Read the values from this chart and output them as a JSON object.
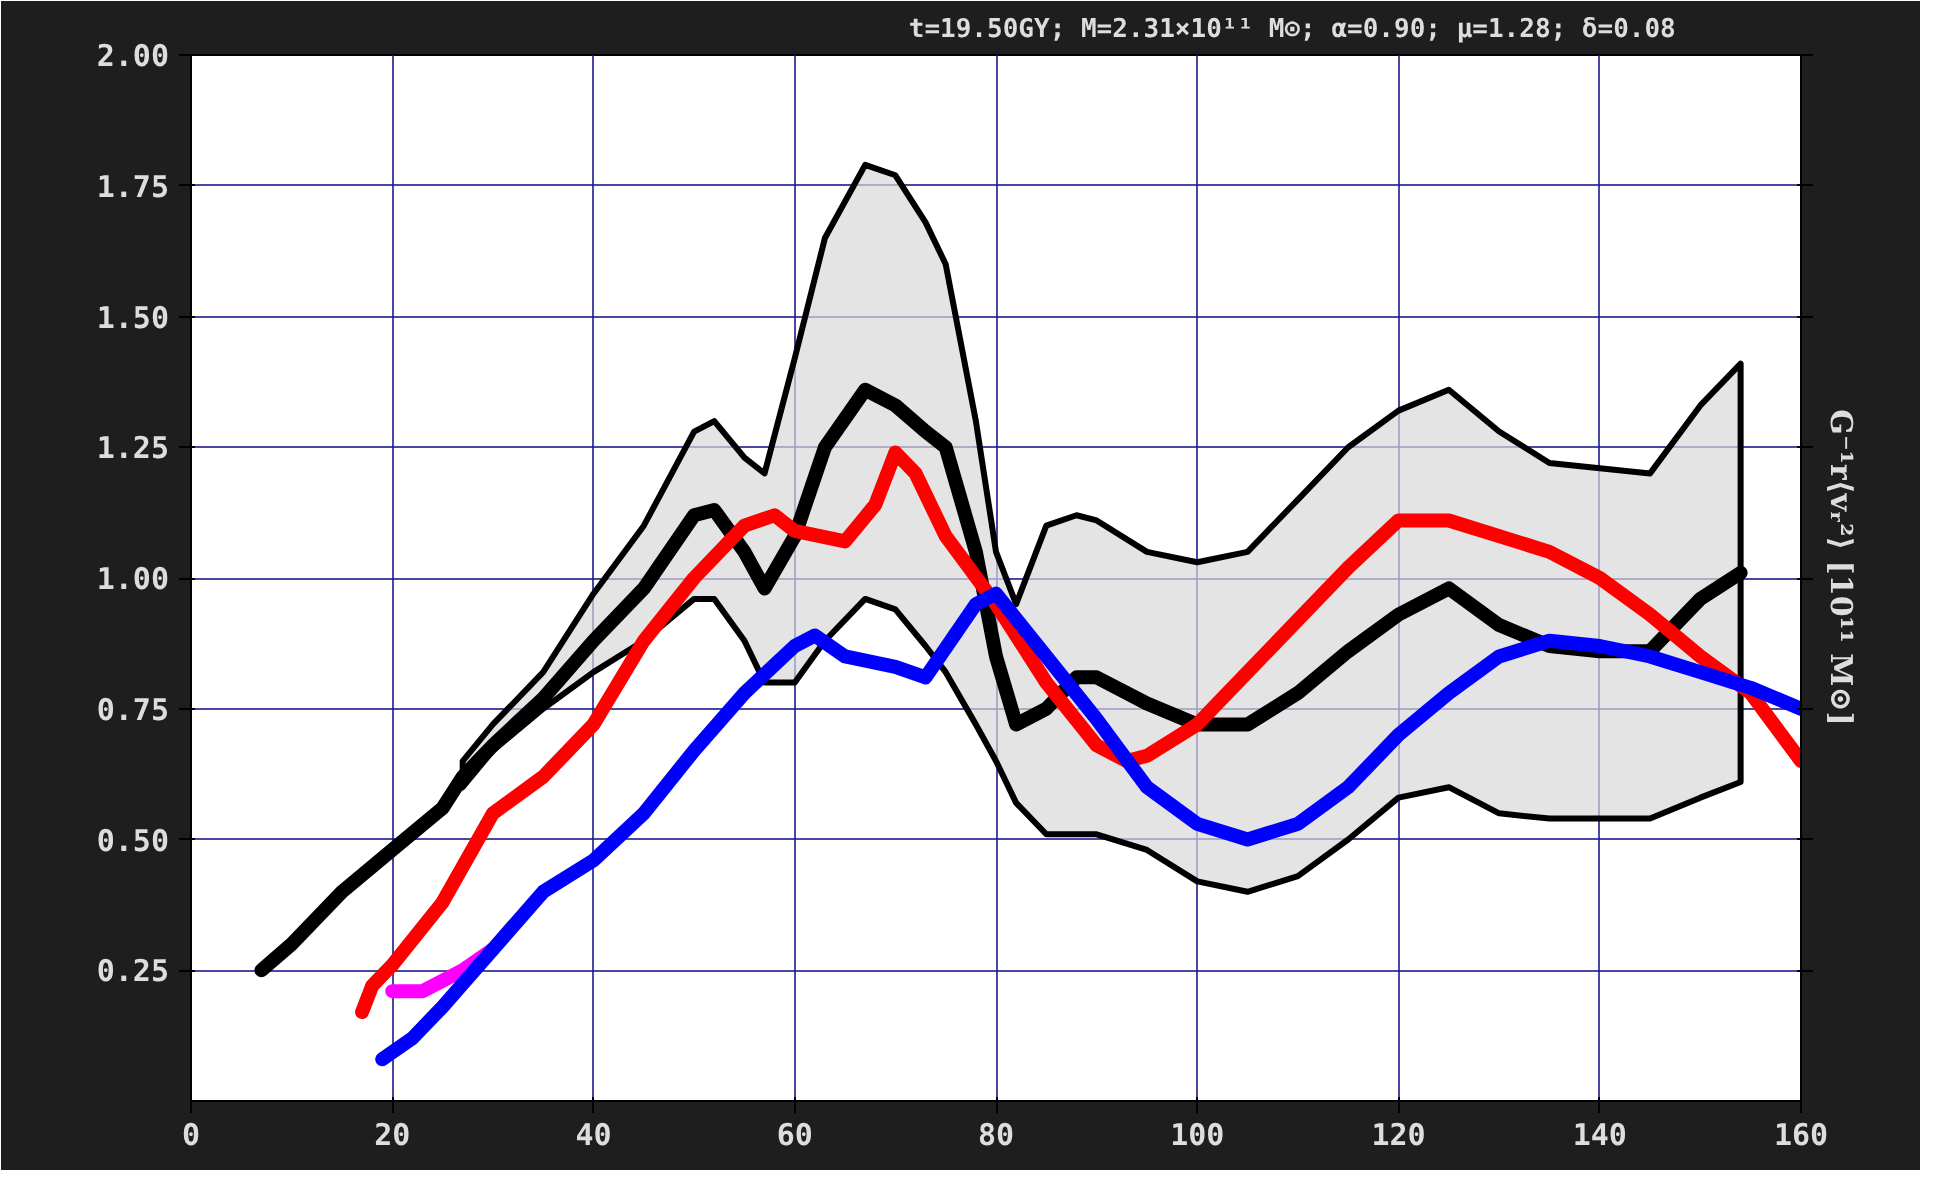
{
  "chart_data": {
    "type": "line",
    "title": "t=19.50GY;   M=2.31×10¹¹ M⊙;   α=0.90;   μ=1.28;   δ=0.08",
    "ylabel": "G⁻¹r⟨vᵣ²⟩   [10¹¹ M⊙]",
    "xlim": [
      0,
      160
    ],
    "xticks": [
      0,
      20,
      40,
      60,
      80,
      100,
      120,
      140,
      160
    ],
    "ylim": [
      0,
      2
    ],
    "yticks": [
      {
        "value": 0.25,
        "label": "0.25"
      },
      {
        "value": 0.5,
        "label": "0.50"
      },
      {
        "value": 0.75,
        "label": "0.75"
      },
      {
        "value": 1,
        "label": "1.00"
      },
      {
        "value": 1.25,
        "label": "1.25"
      },
      {
        "value": 1.5,
        "label": "1.50"
      },
      {
        "value": 1.75,
        "label": "1.75"
      },
      {
        "value": 2,
        "label": "2.00"
      }
    ],
    "grid": true,
    "marker": "none",
    "line_style": "solid",
    "series": [
      {
        "color": "#000000",
        "x": [
          7,
          10,
          15,
          20,
          25,
          27,
          30,
          35,
          40,
          45,
          50,
          52,
          55,
          57,
          60,
          63,
          67,
          70,
          73,
          75,
          78,
          80,
          82,
          85,
          88,
          90,
          95,
          100,
          105,
          110,
          115,
          120,
          125,
          130,
          135,
          140,
          145,
          150,
          154
        ],
        "values": [
          0.25,
          0.3,
          0.4,
          0.48,
          0.56,
          0.62,
          0.68,
          0.77,
          0.88,
          0.98,
          1.12,
          1.13,
          1.05,
          0.98,
          1.08,
          1.25,
          1.36,
          1.33,
          1.28,
          1.25,
          1.05,
          0.85,
          0.72,
          0.75,
          0.81,
          0.81,
          0.76,
          0.72,
          0.72,
          0.78,
          0.86,
          0.93,
          0.98,
          0.91,
          0.87,
          0.86,
          0.86,
          0.96,
          1.01
        ],
        "lower": [
          null,
          null,
          null,
          null,
          null,
          0.6,
          0.67,
          0.75,
          0.82,
          0.88,
          0.96,
          0.96,
          0.88,
          0.8,
          0.8,
          0.88,
          0.96,
          0.94,
          0.87,
          0.82,
          0.72,
          0.65,
          0.57,
          0.51,
          0.51,
          0.51,
          0.48,
          0.42,
          0.4,
          0.43,
          0.5,
          0.58,
          0.6,
          0.55,
          0.54,
          0.54,
          0.54,
          0.58,
          0.61
        ],
        "upper": [
          null,
          null,
          null,
          null,
          null,
          0.65,
          0.72,
          0.82,
          0.97,
          1.1,
          1.28,
          1.3,
          1.23,
          1.2,
          1.42,
          1.65,
          1.79,
          1.77,
          1.68,
          1.6,
          1.3,
          1.05,
          0.95,
          1.1,
          1.12,
          1.11,
          1.05,
          1.03,
          1.05,
          1.15,
          1.25,
          1.32,
          1.36,
          1.28,
          1.22,
          1.21,
          1.2,
          1.33,
          1.41
        ]
      },
      {
        "color": "#ff0000",
        "x": [
          17,
          18,
          20,
          25,
          30,
          35,
          40,
          45,
          50,
          55,
          58,
          60,
          65,
          68,
          70,
          72,
          75,
          80,
          85,
          90,
          93,
          95,
          100,
          105,
          110,
          115,
          120,
          125,
          130,
          135,
          140,
          145,
          150,
          155,
          160
        ],
        "values": [
          0.17,
          0.22,
          0.26,
          0.38,
          0.55,
          0.62,
          0.72,
          0.88,
          1.0,
          1.1,
          1.12,
          1.09,
          1.07,
          1.14,
          1.24,
          1.2,
          1.08,
          0.95,
          0.8,
          0.68,
          0.65,
          0.66,
          0.72,
          0.82,
          0.92,
          1.02,
          1.11,
          1.11,
          1.08,
          1.05,
          1.0,
          0.93,
          0.85,
          0.78,
          0.65
        ]
      },
      {
        "color": "#ff00ff",
        "x": [
          20,
          23,
          27,
          30
        ],
        "values": [
          0.21,
          0.21,
          0.25,
          0.29
        ]
      },
      {
        "color": "#0000ff",
        "x": [
          19,
          22,
          25,
          30,
          35,
          40,
          45,
          50,
          55,
          60,
          62,
          65,
          70,
          73,
          78,
          80,
          85,
          90,
          95,
          100,
          105,
          110,
          115,
          120,
          125,
          130,
          135,
          140,
          145,
          150,
          155,
          160
        ],
        "values": [
          0.08,
          0.12,
          0.18,
          0.29,
          0.4,
          0.46,
          0.55,
          0.67,
          0.78,
          0.87,
          0.89,
          0.85,
          0.83,
          0.81,
          0.95,
          0.97,
          0.85,
          0.73,
          0.6,
          0.53,
          0.5,
          0.53,
          0.6,
          0.7,
          0.78,
          0.85,
          0.88,
          0.87,
          0.85,
          0.82,
          0.79,
          0.75
        ]
      }
    ]
  }
}
